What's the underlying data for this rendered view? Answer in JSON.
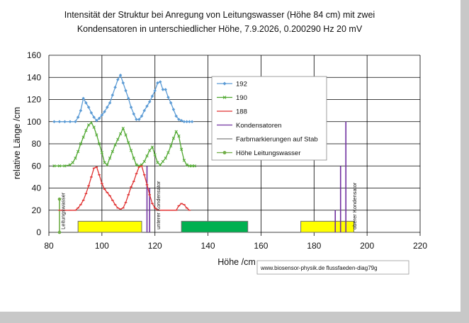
{
  "chart_data": {
    "type": "line",
    "title_lines": [
      "Intensität der Struktur bei Anregung von Leitungswasser (Höhe 84 cm) mit zwei",
      "Kondensatoren in unterschiedlicher Höhe,  7.9.2026,  0.200290 Hz  20 mV"
    ],
    "xlabel": "Höhe /cm",
    "ylabel": "relative Länge /cm",
    "xlim": [
      80,
      220
    ],
    "ylim": [
      0,
      160
    ],
    "xticks": [
      80,
      100,
      120,
      140,
      160,
      180,
      200,
      220
    ],
    "yticks": [
      0,
      20,
      40,
      60,
      80,
      100,
      120,
      140,
      160
    ],
    "grid": true,
    "legend_position": "upper-middle-right",
    "series": [
      {
        "name": "192",
        "color": "#5b9bd5",
        "x": [
          82,
          84,
          86,
          88,
          90,
          91,
          92,
          93,
          94,
          95,
          96,
          97,
          98,
          99,
          100,
          101,
          102,
          103,
          104,
          105,
          106,
          107,
          108,
          109,
          110,
          111,
          112,
          113,
          114,
          115,
          116,
          117,
          118,
          119,
          120,
          121,
          122,
          123,
          124,
          125,
          126,
          127,
          128,
          129,
          130,
          131,
          132,
          133,
          134
        ],
        "y": [
          100,
          100,
          100,
          100,
          100,
          104,
          110,
          121,
          117,
          113,
          108,
          104,
          101,
          103,
          106,
          109,
          113,
          117,
          124,
          131,
          138,
          142,
          135,
          128,
          121,
          113,
          107,
          102,
          102,
          105,
          110,
          114,
          118,
          123,
          128,
          135,
          136,
          129,
          129,
          122,
          117,
          111,
          105,
          102,
          101,
          100,
          100,
          100,
          100
        ]
      },
      {
        "name": "190",
        "color": "#4ea72e",
        "x": [
          82,
          84,
          86,
          88,
          89,
          90,
          91,
          92,
          93,
          94,
          95,
          96,
          97,
          98,
          99,
          100,
          101,
          102,
          103,
          104,
          105,
          106,
          107,
          108,
          109,
          110,
          111,
          112,
          113,
          114,
          115,
          116,
          117,
          118,
          119,
          120,
          121,
          122,
          123,
          124,
          125,
          126,
          127,
          128,
          129,
          130,
          131,
          132,
          133,
          134,
          135
        ],
        "y": [
          60,
          60,
          60,
          61,
          63,
          67,
          73,
          80,
          86,
          92,
          97,
          99,
          95,
          88,
          80,
          72,
          63,
          61,
          67,
          73,
          79,
          84,
          89,
          94,
          88,
          81,
          74,
          67,
          61,
          60,
          61,
          64,
          69,
          74,
          77,
          70,
          63,
          61,
          64,
          67,
          72,
          78,
          85,
          91,
          87,
          75,
          65,
          61,
          60,
          60,
          60
        ]
      },
      {
        "name": "188",
        "color": "#e03030",
        "x": [
          84,
          86,
          88,
          90,
          91,
          92,
          93,
          94,
          95,
          96,
          97,
          98,
          99,
          100,
          101,
          102,
          103,
          104,
          105,
          106,
          107,
          108,
          109,
          110,
          111,
          112,
          113,
          114,
          115,
          116,
          117,
          118,
          119,
          120,
          121,
          122,
          123,
          124,
          125,
          126,
          127,
          128,
          129,
          130,
          131,
          132,
          133
        ],
        "y": [
          20,
          20,
          20,
          20,
          22,
          25,
          29,
          35,
          42,
          50,
          58,
          59,
          52,
          44,
          39,
          36,
          33,
          29,
          25,
          22,
          21,
          22,
          27,
          34,
          41,
          46,
          53,
          59,
          60,
          52,
          43,
          34,
          26,
          22,
          20,
          20,
          20,
          20,
          20,
          20,
          20,
          20,
          24,
          26,
          25,
          22,
          20
        ]
      }
    ],
    "legend": [
      {
        "name": "192",
        "color": "#5b9bd5",
        "marker": "diamond"
      },
      {
        "name": "190",
        "color": "#4ea72e",
        "marker": "cross"
      },
      {
        "name": "188",
        "color": "#e03030",
        "marker": "dash"
      },
      {
        "name": "Kondensatoren",
        "color": "#7030a0",
        "marker": "none"
      },
      {
        "name": "Farbmarkierungen auf Stab",
        "color": "#7f7f7f",
        "marker": "none"
      },
      {
        "name": "Höhe Leitungswasser",
        "color": "#70ad47",
        "marker": "dot"
      }
    ],
    "kondensatoren": [
      {
        "x": 117,
        "y_from": 0,
        "y_to": 60,
        "color": "#7030a0"
      },
      {
        "x": 118,
        "y_from": 0,
        "y_to": 40,
        "color": "#7030a0"
      },
      {
        "x": 188,
        "y_from": 0,
        "y_to": 20,
        "color": "#7030a0"
      },
      {
        "x": 190,
        "y_from": 0,
        "y_to": 60,
        "color": "#7030a0"
      },
      {
        "x": 192,
        "y_from": 0,
        "y_to": 100,
        "color": "#7030a0"
      }
    ],
    "farbmarkierungen": [
      {
        "x_from": 91,
        "x_to": 115,
        "y_from": 0,
        "y_to": 10,
        "color": "#ffff00"
      },
      {
        "x_from": 130,
        "x_to": 155,
        "y_from": 0,
        "y_to": 10,
        "color": "#00b050"
      },
      {
        "x_from": 175,
        "x_to": 195,
        "y_from": 0,
        "y_to": 10,
        "color": "#ffff00"
      }
    ],
    "hoehe_leitungswasser": {
      "x": 84,
      "y_from": 0,
      "y_to": 30,
      "color": "#70ad47"
    },
    "annotations": [
      {
        "text": "Leitungswasser",
        "x": 86,
        "y": 2
      },
      {
        "text": "unterer Kondensator",
        "x": 122,
        "y": 2
      },
      {
        "text": "oberer Kondensator",
        "x": 196,
        "y": 2
      }
    ],
    "source_label": "www.biosensor-physik.de  flussfaeden-diag79g"
  }
}
